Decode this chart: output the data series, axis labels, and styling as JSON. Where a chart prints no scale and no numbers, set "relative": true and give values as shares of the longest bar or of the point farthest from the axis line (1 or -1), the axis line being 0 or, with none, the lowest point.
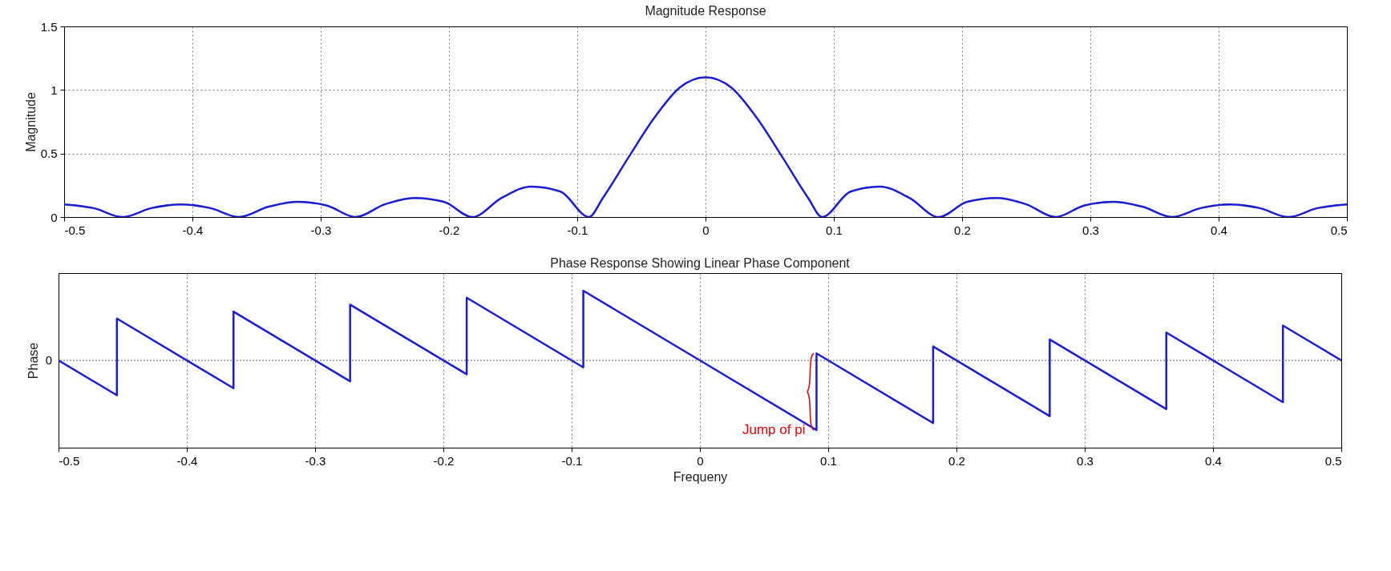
{
  "chart_data": [
    {
      "type": "line",
      "title": "Magnitude Response",
      "ylabel": "Magnitude",
      "color": "#1c1ccf",
      "line_style": "solid",
      "grid": true,
      "xlim": [
        -0.5,
        0.5
      ],
      "ylim": [
        0,
        1.5
      ],
      "xticks": [
        -0.5,
        -0.4,
        -0.3,
        -0.2,
        -0.1,
        0,
        0.1,
        0.2,
        0.3,
        0.4,
        0.5
      ],
      "yticks": [
        0,
        0.5,
        1,
        1.5
      ],
      "x": [
        -0.5,
        -0.477,
        -0.4545,
        -0.432,
        -0.409,
        -0.386,
        -0.3636,
        -0.341,
        -0.318,
        -0.295,
        -0.2727,
        -0.25,
        -0.227,
        -0.204,
        -0.1818,
        -0.159,
        -0.136,
        -0.113,
        -0.0909,
        -0.08,
        -0.06,
        -0.04,
        -0.02,
        0,
        0.02,
        0.04,
        0.06,
        0.08,
        0.0909,
        0.113,
        0.136,
        0.159,
        0.1818,
        0.204,
        0.227,
        0.25,
        0.2727,
        0.295,
        0.318,
        0.341,
        0.3636,
        0.386,
        0.409,
        0.432,
        0.4545,
        0.477,
        0.5
      ],
      "values": [
        0.1,
        0.07,
        0,
        0.07,
        0.1,
        0.07,
        0,
        0.08,
        0.12,
        0.09,
        0,
        0.1,
        0.15,
        0.12,
        0,
        0.15,
        0.24,
        0.2,
        0,
        0.15,
        0.47,
        0.78,
        1.02,
        1.1,
        1.02,
        0.78,
        0.47,
        0.15,
        0,
        0.2,
        0.24,
        0.15,
        0,
        0.12,
        0.15,
        0.1,
        0,
        0.09,
        0.12,
        0.08,
        0,
        0.07,
        0.1,
        0.07,
        0,
        0.07,
        0.1
      ]
    },
    {
      "type": "line",
      "title": "Phase Response Showing Linear Phase Component",
      "xlabel": "Frequeny",
      "ylabel": "Phase",
      "relative": true,
      "color": "#1c1ccf",
      "line_style": "solid",
      "grid": "x",
      "xlim": [
        -0.5,
        0.5
      ],
      "xticks": [
        -0.5,
        -0.4,
        -0.3,
        -0.2,
        -0.1,
        0,
        0.1,
        0.2,
        0.3,
        0.4,
        0.5
      ],
      "x": [
        -0.5,
        -0.4545,
        -0.4545,
        -0.3636,
        -0.3636,
        -0.2727,
        -0.2727,
        -0.1818,
        -0.1818,
        -0.0909,
        -0.0909,
        0,
        0.0909,
        0.0909,
        0.1818,
        0.1818,
        0.2727,
        0.2727,
        0.3636,
        0.3636,
        0.4545,
        0.4545,
        0.5
      ],
      "values": [
        0,
        -0.5,
        0.6,
        -0.4,
        0.7,
        -0.3,
        0.8,
        -0.2,
        0.9,
        -0.1,
        1,
        0,
        -1,
        0.1,
        -0.9,
        0.2,
        -0.8,
        0.3,
        -0.7,
        0.4,
        -0.6,
        0.5,
        0
      ],
      "ref_lines": [
        {
          "axis": "y",
          "value": 0,
          "label": "0"
        }
      ],
      "annotations": [
        {
          "text": "Jump of pi",
          "x": 0.0909,
          "y": -1
        }
      ]
    }
  ]
}
